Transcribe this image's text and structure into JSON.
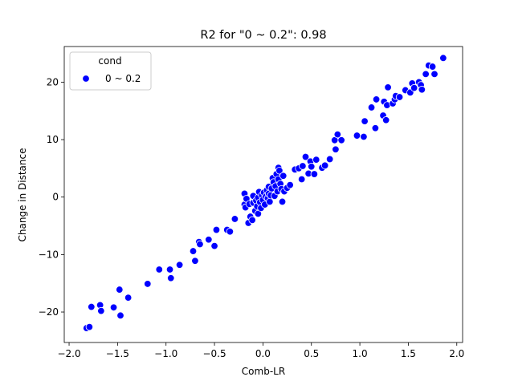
{
  "chart_data": {
    "type": "scatter",
    "title": "R2 for \"0 ~ 0.2\": 0.98",
    "xlabel": "Comb-LR",
    "ylabel": "Change in Distance",
    "xlim": [
      -2.05,
      2.06
    ],
    "ylim": [
      -25.3,
      26.2
    ],
    "xticks": [
      -2.0,
      -1.5,
      -1.0,
      -0.5,
      0.0,
      0.5,
      1.0,
      1.5,
      2.0
    ],
    "xtick_labels": [
      "−2.0",
      "−1.5",
      "−1.0",
      "−0.5",
      "0.0",
      "0.5",
      "1.0",
      "1.5",
      "2.0"
    ],
    "yticks": [
      -20,
      -10,
      0,
      10,
      20
    ],
    "ytick_labels": [
      "−20",
      "−10",
      "0",
      "10",
      "20"
    ],
    "grid": false,
    "legend": {
      "title": "cond",
      "placement": "top-left",
      "entries": [
        "0 ~ 0.2"
      ]
    },
    "series": [
      {
        "name": "0 ~ 0.2",
        "color": "#0000ff",
        "points": [
          [
            -1.82,
            -22.8
          ],
          [
            -1.79,
            -22.6
          ],
          [
            -1.77,
            -19.1
          ],
          [
            -1.68,
            -18.8
          ],
          [
            -1.67,
            -19.8
          ],
          [
            -1.54,
            -19.2
          ],
          [
            -1.48,
            -16.1
          ],
          [
            -1.47,
            -20.6
          ],
          [
            -1.39,
            -17.5
          ],
          [
            -1.19,
            -15.1
          ],
          [
            -1.07,
            -12.6
          ],
          [
            -0.96,
            -12.6
          ],
          [
            -0.95,
            -14.1
          ],
          [
            -0.86,
            -11.8
          ],
          [
            -0.72,
            -9.4
          ],
          [
            -0.7,
            -11.1
          ],
          [
            -0.66,
            -7.8
          ],
          [
            -0.65,
            -8.2
          ],
          [
            -0.56,
            -7.4
          ],
          [
            -0.5,
            -8.5
          ],
          [
            -0.48,
            -5.7
          ],
          [
            -0.37,
            -5.7
          ],
          [
            -0.34,
            -6.0
          ],
          [
            -0.29,
            -3.8
          ],
          [
            -0.19,
            -1.3
          ],
          [
            -0.19,
            0.6
          ],
          [
            -0.18,
            -1.8
          ],
          [
            -0.17,
            -0.3
          ],
          [
            -0.15,
            -4.5
          ],
          [
            -0.14,
            -1.2
          ],
          [
            -0.13,
            -3.4
          ],
          [
            -0.11,
            -4.0
          ],
          [
            -0.1,
            -1.0
          ],
          [
            -0.1,
            0.2
          ],
          [
            -0.08,
            -2.4
          ],
          [
            -0.07,
            -0.6
          ],
          [
            -0.06,
            -1.6
          ],
          [
            -0.05,
            -0.1
          ],
          [
            -0.05,
            -2.9
          ],
          [
            -0.04,
            0.9
          ],
          [
            -0.03,
            -0.9
          ],
          [
            -0.02,
            -1.9
          ],
          [
            -0.01,
            0.3
          ],
          [
            0.0,
            -0.5
          ],
          [
            0.01,
            0.8
          ],
          [
            0.02,
            -1.3
          ],
          [
            0.03,
            0.1
          ],
          [
            0.04,
            1.2
          ],
          [
            0.05,
            -0.2
          ],
          [
            0.06,
            0.6
          ],
          [
            0.06,
            1.8
          ],
          [
            0.07,
            -0.8
          ],
          [
            0.08,
            0.3
          ],
          [
            0.09,
            1.5
          ],
          [
            0.1,
            3.3
          ],
          [
            0.11,
            2.6
          ],
          [
            0.12,
            0.2
          ],
          [
            0.13,
            1.9
          ],
          [
            0.14,
            4.0
          ],
          [
            0.15,
            1.0
          ],
          [
            0.16,
            5.1
          ],
          [
            0.16,
            3.1
          ],
          [
            0.17,
            4.6
          ],
          [
            0.18,
            2.3
          ],
          [
            0.19,
            1.4
          ],
          [
            0.2,
            -0.8
          ],
          [
            0.21,
            3.7
          ],
          [
            0.22,
            1.0
          ],
          [
            0.25,
            1.6
          ],
          [
            0.28,
            2.1
          ],
          [
            0.33,
            4.8
          ],
          [
            0.37,
            5.0
          ],
          [
            0.4,
            3.1
          ],
          [
            0.41,
            5.4
          ],
          [
            0.44,
            7.0
          ],
          [
            0.47,
            4.1
          ],
          [
            0.49,
            6.2
          ],
          [
            0.5,
            5.3
          ],
          [
            0.53,
            4.0
          ],
          [
            0.55,
            6.5
          ],
          [
            0.61,
            5.1
          ],
          [
            0.64,
            5.5
          ],
          [
            0.69,
            6.6
          ],
          [
            0.74,
            9.9
          ],
          [
            0.75,
            8.3
          ],
          [
            0.77,
            10.9
          ],
          [
            0.81,
            9.9
          ],
          [
            0.97,
            10.7
          ],
          [
            1.04,
            10.5
          ],
          [
            1.05,
            13.2
          ],
          [
            1.12,
            15.6
          ],
          [
            1.16,
            12.0
          ],
          [
            1.17,
            17.0
          ],
          [
            1.24,
            14.2
          ],
          [
            1.25,
            16.6
          ],
          [
            1.27,
            13.4
          ],
          [
            1.28,
            16.0
          ],
          [
            1.29,
            19.1
          ],
          [
            1.34,
            16.3
          ],
          [
            1.36,
            17.0
          ],
          [
            1.37,
            17.6
          ],
          [
            1.41,
            17.4
          ],
          [
            1.47,
            18.6
          ],
          [
            1.52,
            18.2
          ],
          [
            1.54,
            19.8
          ],
          [
            1.56,
            19.0
          ],
          [
            1.61,
            20.0
          ],
          [
            1.63,
            19.5
          ],
          [
            1.64,
            18.7
          ],
          [
            1.68,
            21.4
          ],
          [
            1.71,
            22.9
          ],
          [
            1.75,
            22.7
          ],
          [
            1.77,
            21.4
          ],
          [
            1.86,
            24.2
          ]
        ]
      }
    ]
  }
}
